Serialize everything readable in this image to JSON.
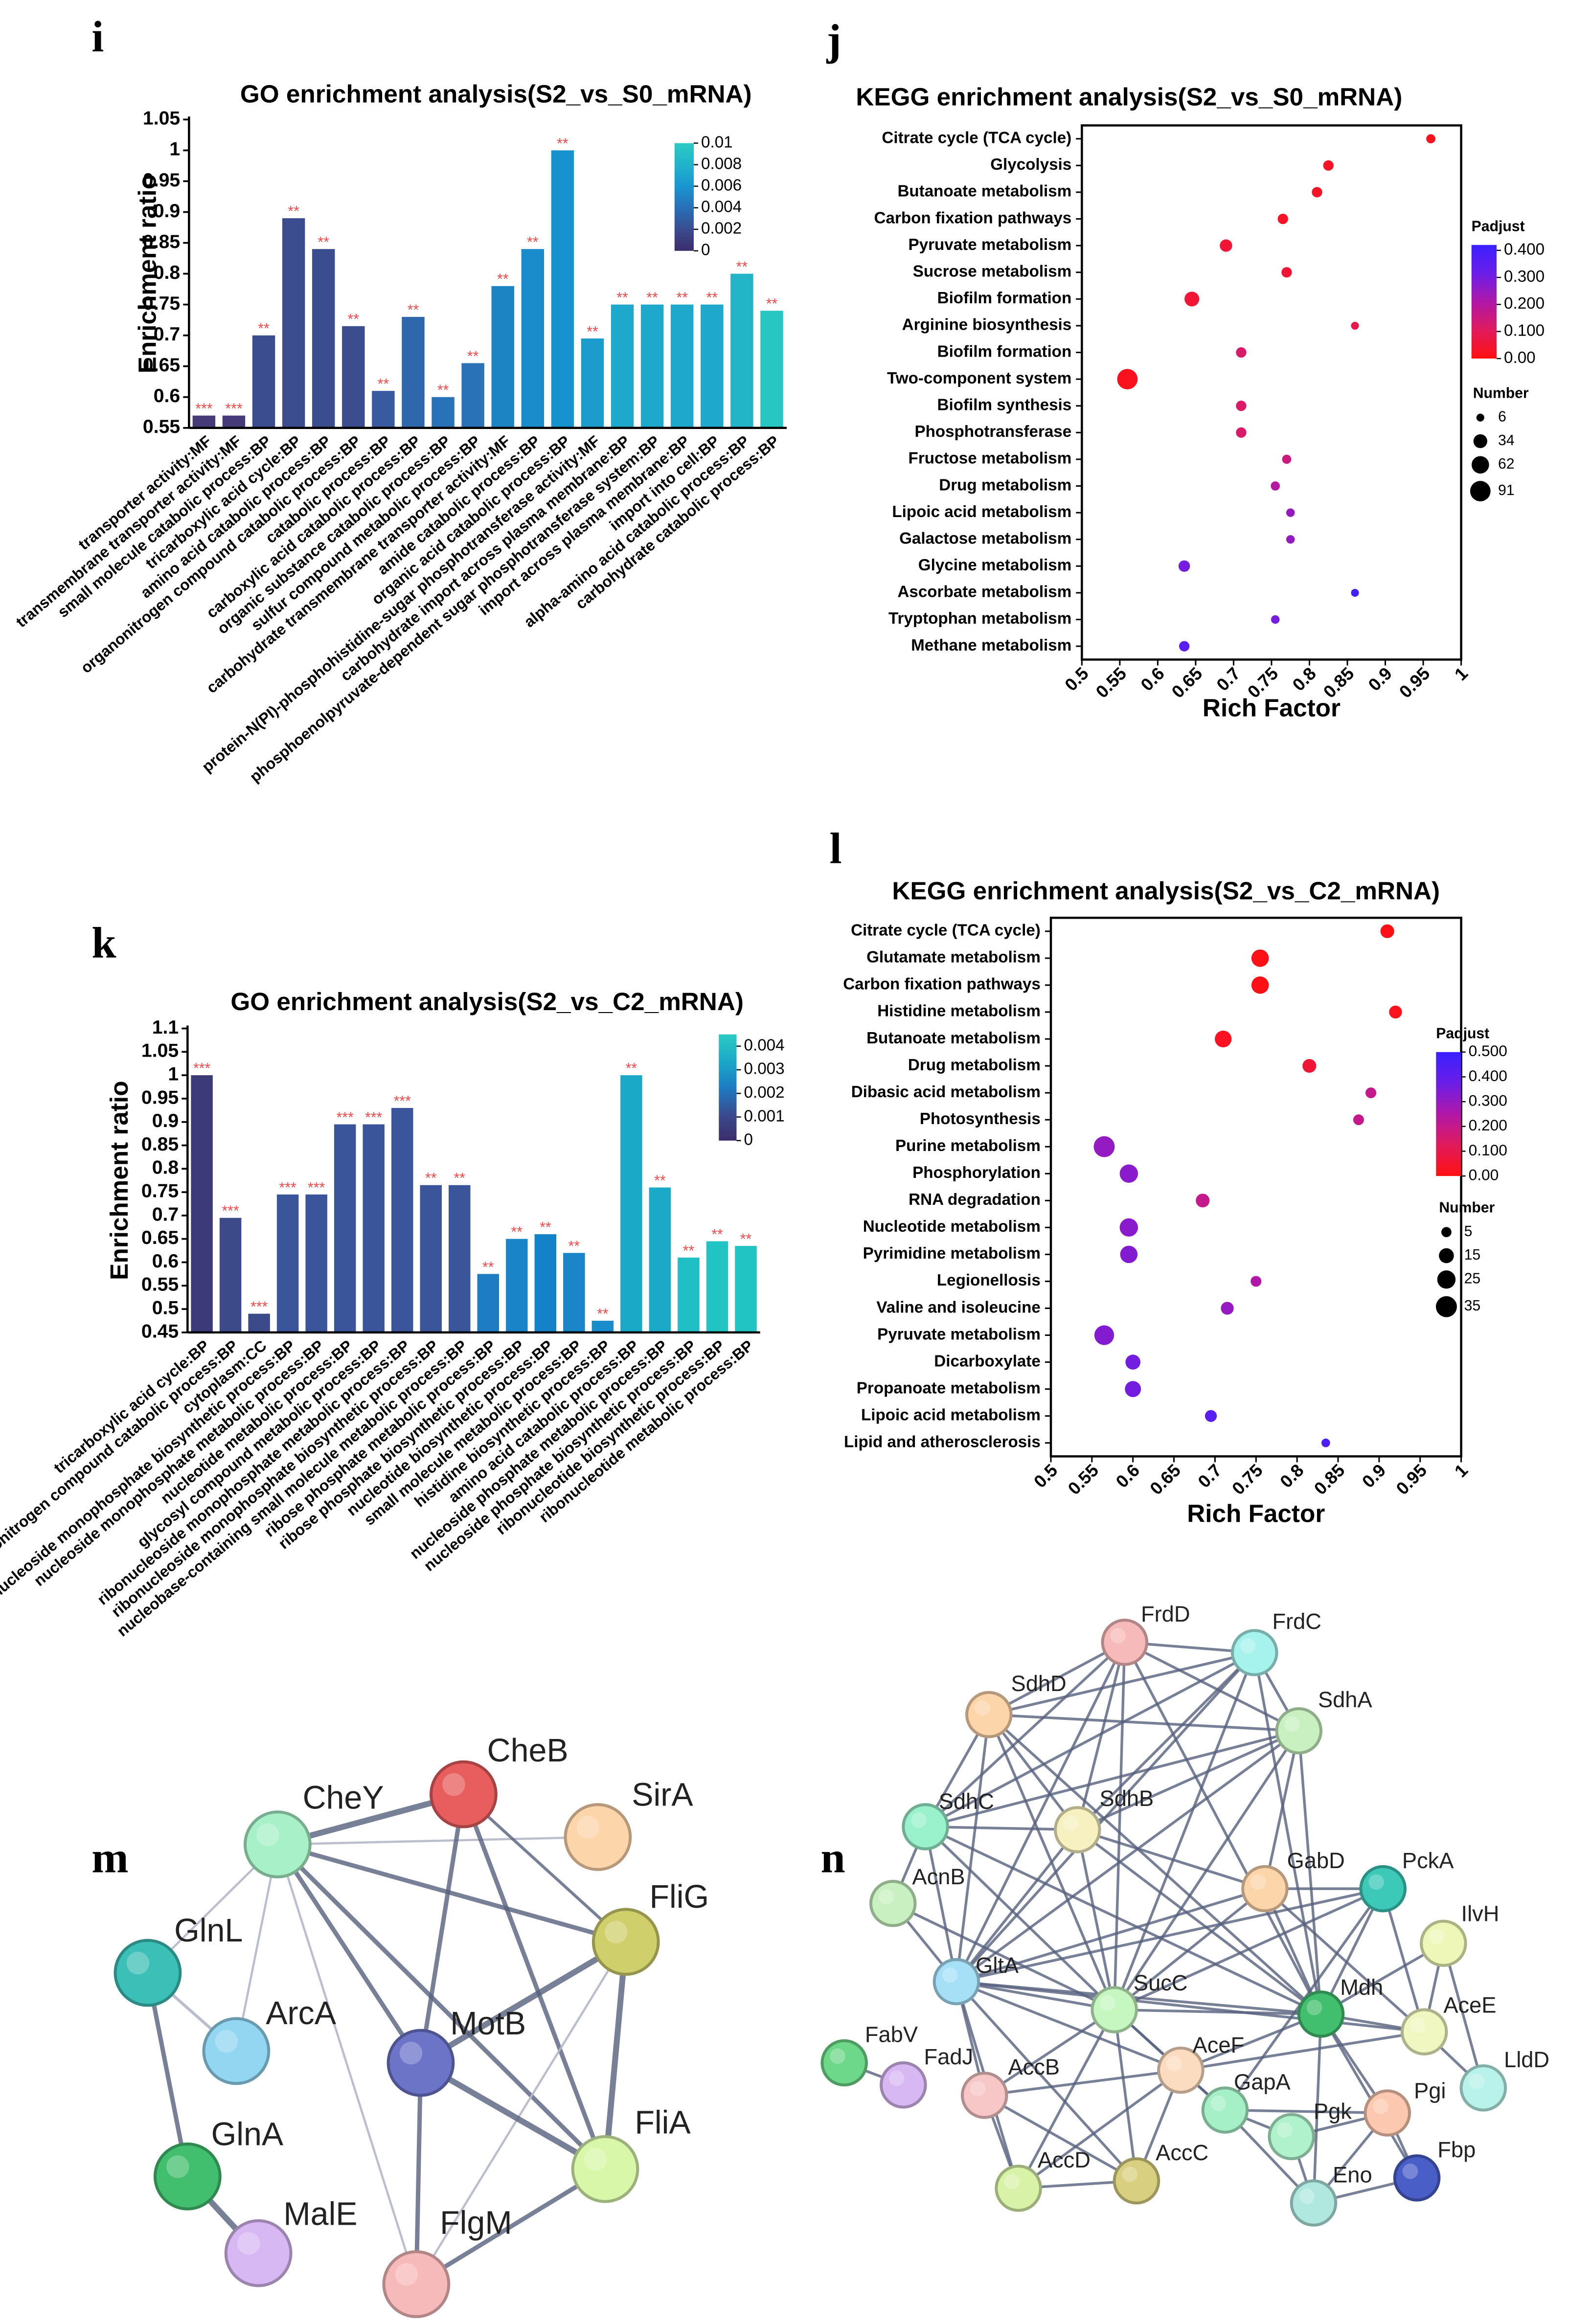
{
  "chart_data": [
    {
      "type": "bar",
      "panel": "i",
      "title": "GO enrichment analysis(S2_vs_S0_mRNA)",
      "ylabel": "Enrichment ratio",
      "categories": [
        "transporter activity:MF",
        "transmembrane transporter activity:MF",
        "small molecule catabolic process:BP",
        "tricarboxylic acid cycle:BP",
        "amino acid catabolic process:BP",
        "organonitrogen compound catabolic process:BP",
        "catabolic process:BP",
        "carboxylic acid catabolic process:BP",
        "organic substance catabolic process:BP",
        "sulfur compound metabolic process:BP",
        "carbohydrate transmembrane transporter activity:MF",
        "amide catabolic process:BP",
        "organic acid catabolic process:BP",
        "protein-N(PI)-phosphohistidine-sugar phosphotransferase activity:MF",
        "carbohydrate import across plasma membrane:BP",
        "phosphoenolpyruvate-dependent sugar phosphotransferase system:BP",
        "import across plasma membrane:BP",
        "import into cell:BP",
        "alpha-amino acid catabolic process:BP",
        "carbohydrate catabolic process:BP"
      ],
      "values": [
        0.57,
        0.57,
        0.7,
        0.89,
        0.84,
        0.715,
        0.61,
        0.73,
        0.6,
        0.655,
        0.78,
        0.84,
        1.0,
        0.695,
        0.75,
        0.75,
        0.75,
        0.75,
        0.8,
        0.74
      ],
      "significance": [
        "***",
        "***",
        "**",
        "**",
        "**",
        "**",
        "**",
        "**",
        "**",
        "**",
        "**",
        "**",
        "**",
        "**",
        "**",
        "**",
        "**",
        "**",
        "**",
        "**"
      ],
      "colors": [
        "#463a78",
        "#463a78",
        "#3b4d8e",
        "#3b4d8e",
        "#3b4d8e",
        "#3b4d8e",
        "#3a5a9f",
        "#2f67ad",
        "#2a72b8",
        "#2a72b8",
        "#1d84c4",
        "#1a8ccb",
        "#1693cf",
        "#1b9ccd",
        "#1ea8cb",
        "#1ea8cb",
        "#1ea8cb",
        "#1ea8cb",
        "#22b5c8",
        "#28c6c2"
      ],
      "ylim": [
        0.55,
        1.05
      ],
      "yticks": [
        0.55,
        0.6,
        0.65,
        0.7,
        0.75,
        0.8,
        0.85,
        0.9,
        0.95,
        1,
        1.05
      ],
      "colorbar": {
        "lim": [
          0,
          0.01
        ],
        "ticks": [
          0,
          0.002,
          0.004,
          0.006,
          0.008,
          0.01
        ],
        "colors": [
          "#3b2d6b",
          "#3a4c90",
          "#2870b8",
          "#1996d0",
          "#1fb4cb",
          "#2ccac3"
        ]
      }
    },
    {
      "type": "bubble",
      "panel": "j",
      "title": "KEGG enrichment analysis(S2_vs_S0_mRNA)",
      "xlabel": "Rich Factor",
      "categories": [
        "Citrate cycle (TCA cycle)",
        "Glycolysis",
        "Butanoate metabolism",
        "Carbon fixation pathways",
        "Pyruvate metabolism",
        "Sucrose metabolism",
        "Biofilm formation",
        "Arginine biosynthesis",
        "Biofilm formation",
        "Two-component system",
        "Biofilm synthesis",
        "Phosphotransferase",
        "Fructose metabolism",
        "Drug metabolism",
        "Lipoic acid metabolism",
        "Galactose metabolism",
        "Glycine metabolism",
        "Ascorbate metabolism",
        "Tryptophan metabolism",
        "Methane metabolism"
      ],
      "values": [
        0.96,
        0.825,
        0.81,
        0.765,
        0.69,
        0.77,
        0.645,
        0.86,
        0.71,
        0.56,
        0.71,
        0.71,
        0.77,
        0.755,
        0.775,
        0.775,
        0.635,
        0.86,
        0.755,
        0.635
      ],
      "sizes": [
        10,
        15,
        15,
        15,
        25,
        15,
        40,
        6,
        15,
        91,
        15,
        15,
        10,
        10,
        8,
        8,
        20,
        6,
        8,
        15
      ],
      "padjust": [
        0.02,
        0.03,
        0.03,
        0.03,
        0.05,
        0.05,
        0.05,
        0.08,
        0.12,
        0.02,
        0.12,
        0.12,
        0.15,
        0.2,
        0.25,
        0.25,
        0.3,
        0.4,
        0.3,
        0.35
      ],
      "xlim": [
        0.5,
        1
      ],
      "xticks": [
        0.5,
        0.55,
        0.6,
        0.65,
        0.7,
        0.75,
        0.8,
        0.85,
        0.9,
        0.95,
        1
      ],
      "colorbar": {
        "title": "Padjust",
        "lim": [
          0,
          0.42
        ],
        "ticks": [
          {
            "value": 0,
            "label": "0.00"
          },
          {
            "value": 0.1,
            "label": "0.100"
          },
          {
            "value": 0.2,
            "label": "0.200"
          },
          {
            "value": 0.3,
            "label": "0.300"
          },
          {
            "value": 0.4,
            "label": "0.400"
          }
        ],
        "colors": [
          "#ff1010",
          "#e01a5c",
          "#b018a8",
          "#6a1ee8",
          "#3a20ff"
        ]
      },
      "size_legend": {
        "title": "Number",
        "values": [
          6,
          34,
          62,
          91
        ]
      }
    },
    {
      "type": "bar",
      "panel": "k",
      "title": "GO enrichment analysis(S2_vs_C2_mRNA)",
      "ylabel": "Enrichment ratio",
      "categories": [
        "tricarboxylic acid cycle:BP",
        "organonitrogen compound catabolic process:BP",
        "cytoplasm:CC",
        "nucleoside monophosphate biosynthetic process:BP",
        "nucleoside monophosphate metabolic process:BP",
        "nucleotide metabolic process:BP",
        "glycosyl compound metabolic process:BP",
        "ribonucleoside monophosphate metabolic process:BP",
        "ribonucleoside monophosphate biosynthetic process:BP",
        "nucleobase-containing small molecule metabolic process:BP",
        "ribose phosphate metabolic process:BP",
        "ribose phosphate biosynthetic process:BP",
        "nucleotide biosynthetic process:BP",
        "small molecule metabolic process:BP",
        "histidine biosynthetic process:BP",
        "amino acid catabolic process:BP",
        "nucleoside phosphate metabolic process:BP",
        "nucleoside phosphate biosynthetic process:BP",
        "ribonucleotide biosynthetic process:BP",
        "ribonucleotide metabolic process:BP"
      ],
      "values": [
        1.0,
        0.695,
        0.49,
        0.745,
        0.745,
        0.895,
        0.895,
        0.93,
        0.765,
        0.765,
        0.575,
        0.65,
        0.66,
        0.62,
        0.475,
        1.0,
        0.76,
        0.61,
        0.645,
        0.635
      ],
      "significance": [
        "***",
        "***",
        "***",
        "***",
        "***",
        "***",
        "***",
        "***",
        "**",
        "**",
        "**",
        "**",
        "**",
        "**",
        "**",
        "**",
        "**",
        "**",
        "**",
        "**"
      ],
      "colors": [
        "#3c3a78",
        "#3d4a8a",
        "#3d4a8a",
        "#3b559a",
        "#3b559a",
        "#3b559a",
        "#3b559a",
        "#3b559a",
        "#3b559a",
        "#3b559a",
        "#1d7cc2",
        "#1a84c8",
        "#1482c8",
        "#1a86c8",
        "#1a8ccb",
        "#1ba9c8",
        "#1ba9c8",
        "#20bec5",
        "#22c3c3",
        "#22c3c3"
      ],
      "ylim": [
        0.45,
        1.1
      ],
      "yticks": [
        0.45,
        0.5,
        0.55,
        0.6,
        0.65,
        0.7,
        0.75,
        0.8,
        0.85,
        0.9,
        0.95,
        1,
        1.05,
        1.1
      ],
      "colorbar": {
        "lim": [
          0,
          0.0045
        ],
        "ticks": [
          0,
          0.001,
          0.002,
          0.003,
          0.004
        ],
        "colors": [
          "#3b2d6b",
          "#3a4c90",
          "#1d7cc2",
          "#1ba9c8",
          "#2ccac3"
        ]
      }
    },
    {
      "type": "bubble",
      "panel": "l",
      "title": "KEGG enrichment analysis(S2_vs_C2_mRNA)",
      "xlabel": "Rich Factor",
      "categories": [
        "Citrate cycle (TCA cycle)",
        "Glutamate metabolism",
        "Carbon fixation pathways",
        "Histidine metabolism",
        "Butanoate metabolism",
        "Drug metabolism",
        "Dibasic acid metabolism",
        "Photosynthesis",
        "Purine metabolism",
        "Phosphorylation",
        "RNA degradation",
        "Nucleotide metabolism",
        "Pyrimidine metabolism",
        "Legionellosis",
        "Valine and isoleucine",
        "Pyruvate metabolism",
        "Dicarboxylate",
        "Propanoate metabolism",
        "Lipoic acid metabolism",
        "Lipid and atherosclerosis"
      ],
      "values": [
        0.91,
        0.755,
        0.755,
        0.92,
        0.71,
        0.815,
        0.89,
        0.875,
        0.565,
        0.595,
        0.685,
        0.595,
        0.595,
        0.75,
        0.715,
        0.565,
        0.6,
        0.6,
        0.695,
        0.835
      ],
      "sizes": [
        12,
        22,
        22,
        10,
        20,
        12,
        6,
        6,
        35,
        25,
        12,
        25,
        22,
        6,
        10,
        30,
        15,
        18,
        8,
        3
      ],
      "padjust": [
        0.01,
        0.01,
        0.01,
        0.02,
        0.03,
        0.06,
        0.2,
        0.2,
        0.3,
        0.32,
        0.2,
        0.32,
        0.33,
        0.25,
        0.3,
        0.33,
        0.36,
        0.36,
        0.42,
        0.45
      ],
      "xlim": [
        0.5,
        1
      ],
      "xticks": [
        0.5,
        0.55,
        0.6,
        0.65,
        0.7,
        0.75,
        0.8,
        0.85,
        0.9,
        0.95,
        1
      ],
      "colorbar": {
        "title": "Padjust",
        "lim": [
          0,
          0.5
        ],
        "ticks": [
          {
            "value": 0,
            "label": "0.00"
          },
          {
            "value": 0.1,
            "label": "0.100"
          },
          {
            "value": 0.2,
            "label": "0.200"
          },
          {
            "value": 0.3,
            "label": "0.300"
          },
          {
            "value": 0.4,
            "label": "0.400"
          },
          {
            "value": 0.5,
            "label": "0.500"
          }
        ],
        "colors": [
          "#ff1010",
          "#e01a5c",
          "#b018a8",
          "#6a1ee8",
          "#3a20ff"
        ]
      },
      "size_legend": {
        "title": "Number",
        "values": [
          5,
          15,
          25,
          35
        ]
      }
    }
  ],
  "networks": [
    {
      "panel": "m",
      "nodes": [
        "CheY",
        "CheB",
        "SirA",
        "FliG",
        "GlnL",
        "ArcA",
        "MotB",
        "FliA",
        "GlnA",
        "MalE",
        "FlgM"
      ],
      "colors": [
        "#a8f0c8",
        "#e85d5d",
        "#fcd5aa",
        "#cfcf6c",
        "#3cbfb6",
        "#92d6f2",
        "#6c74c8",
        "#d9f7a9",
        "#42bf6e",
        "#d7b8f2",
        "#f7baba"
      ]
    },
    {
      "panel": "n",
      "nodes": [
        "FrdD",
        "FrdC",
        "SdhD",
        "SdhA",
        "SdhC",
        "SdhB",
        "GabD",
        "PckA",
        "AcnB",
        "IlvH",
        "GltA",
        "SucC",
        "Mdh",
        "AceE",
        "FabV",
        "FadJ",
        "AccB",
        "AceF",
        "GapA",
        "LldD",
        "Pgi",
        "Pgk",
        "AccD",
        "AccC",
        "Eno",
        "Fbp"
      ],
      "colors": [
        "#f7baba",
        "#a6f2ec",
        "#fcd5aa",
        "#c8f0c0",
        "#9af2cc",
        "#f7f0c0",
        "#fcd5aa",
        "#3cc9b8",
        "#c8f0c0",
        "#eef7b8",
        "#a6e0f7",
        "#c6f7c0",
        "#42bf6e",
        "#f0f7c0",
        "#6ed88a",
        "#d7b8f2",
        "#f7c6c6",
        "#fcdcc0",
        "#a6f0c8",
        "#b8f2ea",
        "#fcc8b0",
        "#b0f2cc",
        "#d8f2a8",
        "#d8d080",
        "#b0e8e0",
        "#4a5ec8"
      ]
    }
  ]
}
